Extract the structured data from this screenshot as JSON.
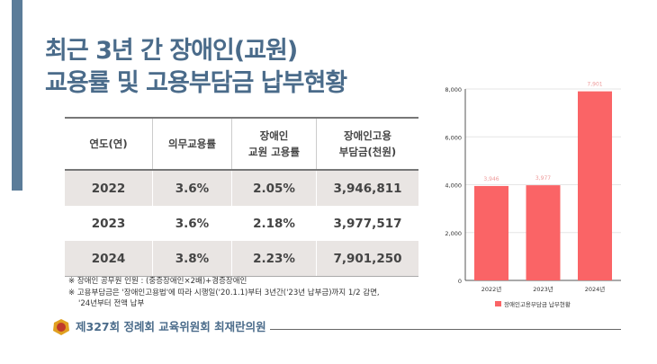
{
  "title": {
    "line1": "최근 3년 간 장애인(교원)",
    "line2": "교용률 및 고용부담금 납부현황"
  },
  "table": {
    "headers": [
      [
        "연도(연)"
      ],
      [
        "의무교용률"
      ],
      [
        "장애인",
        "교원 고용률"
      ],
      [
        "장애인고용",
        "부담금(천원)"
      ]
    ],
    "rows": [
      [
        "2022",
        "3.6%",
        "2.05%",
        "3,946,811"
      ],
      [
        "2023",
        "3.6%",
        "2.18%",
        "3,977,517"
      ],
      [
        "2024",
        "3.8%",
        "2.23%",
        "7,901,250"
      ]
    ]
  },
  "notes": [
    "※ 장애인 공무원 인원 : (중증장애인×2배)+경증장애인",
    "※ 고용부담금은 '장애인고용법'에 따라 시행일('20.1.1)부터 3년간('23년 납부금)까지 1/2 감면,",
    "'24년부터 전액 납부"
  ],
  "footer": {
    "signature": "제327회 정례회 교육위원회 최재란의원"
  },
  "chart_data": {
    "type": "bar",
    "categories": [
      "2022년",
      "2023년",
      "2024년"
    ],
    "values": [
      3946,
      3977,
      7901
    ],
    "data_labels": [
      "3,946",
      "3,977",
      "7,901"
    ],
    "yticks": [
      "0",
      "2,000",
      "4,000",
      "6,000",
      "8,000"
    ],
    "ylim": [
      0,
      8000
    ],
    "legend": "장애인고용부담금 납부현황",
    "legend_position": "bottom",
    "color": "#fa6466",
    "grid": true
  }
}
